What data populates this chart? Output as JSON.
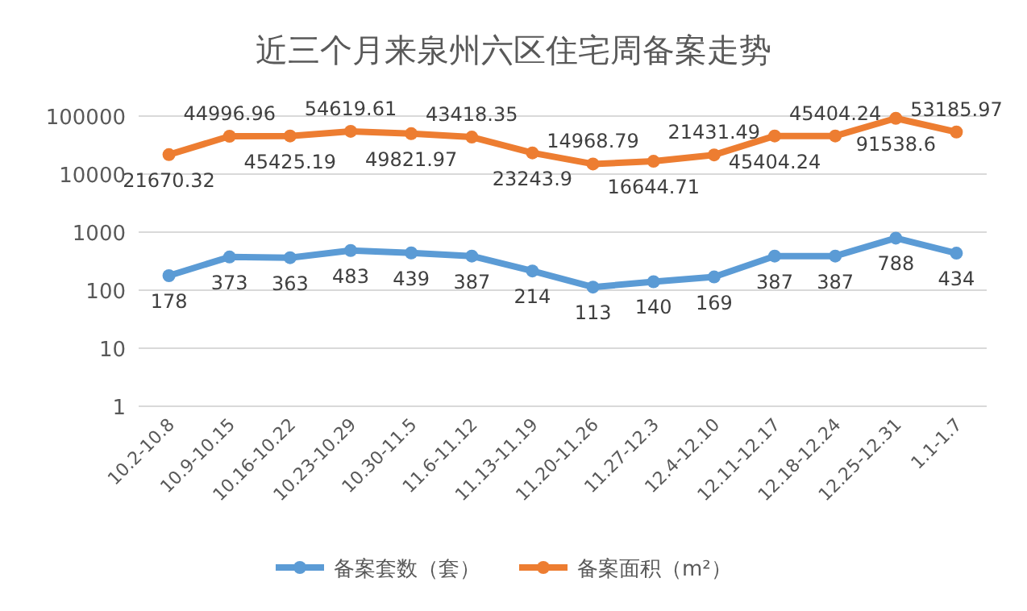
{
  "chart_data": {
    "type": "line",
    "title": "近三个月来泉州六区住宅周备案走势",
    "categories": [
      "10.2-10.8",
      "10.9-10.15",
      "10.16-10.22",
      "10.23-10.29",
      "10.30-11.5",
      "11.6-11.12",
      "11.13-11.19",
      "11.20-11.26",
      "11.27-12.3",
      "12.4-12.10",
      "12.11-12.17",
      "12.18-12.24",
      "12.25-12.31",
      "1.1-1.7"
    ],
    "series": [
      {
        "name": "备案套数（套）",
        "color": "#5b9bd5",
        "values": [
          178,
          373,
          363,
          483,
          439,
          387,
          214,
          113,
          140,
          169,
          387,
          387,
          788,
          434
        ]
      },
      {
        "name": "备案面积（m²）",
        "color": "#ed7d31",
        "values": [
          21670.32,
          44996.96,
          45425.19,
          54619.61,
          49821.97,
          43418.35,
          23243.9,
          14968.79,
          16644.71,
          21431.49,
          45404.24,
          45404.24,
          91538.6,
          53185.97
        ]
      }
    ],
    "log": "y",
    "ylim": [
      1,
      100000
    ],
    "yticks": [
      1,
      10,
      100,
      1000,
      10000,
      100000
    ],
    "grid": "y",
    "legend": "bottom",
    "marker": "circle",
    "line_style": "solid",
    "data_labels": true
  }
}
